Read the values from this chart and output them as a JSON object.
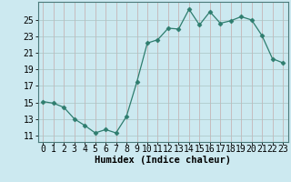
{
  "x": [
    0,
    1,
    2,
    3,
    4,
    5,
    6,
    7,
    8,
    9,
    10,
    11,
    12,
    13,
    14,
    15,
    16,
    17,
    18,
    19,
    20,
    21,
    22,
    23
  ],
  "y": [
    15.1,
    14.9,
    14.4,
    13.0,
    12.2,
    11.3,
    11.7,
    11.3,
    13.3,
    17.5,
    22.2,
    22.6,
    24.0,
    23.9,
    26.3,
    24.4,
    26.0,
    24.6,
    24.9,
    25.4,
    25.0,
    23.1,
    20.3,
    19.8
  ],
  "line_color": "#2e7d6e",
  "marker": "D",
  "marker_size": 2.5,
  "bg_color": "#cce9f0",
  "grid_x_color": "#c4aaaa",
  "grid_y_color": "#aac4c4",
  "xlabel": "Humidex (Indice chaleur)",
  "xlabel_fontsize": 7.5,
  "ylabel_ticks": [
    11,
    13,
    15,
    17,
    19,
    21,
    23,
    25
  ],
  "xlim": [
    -0.5,
    23.5
  ],
  "ylim": [
    10.2,
    27.2
  ],
  "tick_fontsize": 7,
  "xtick_labels": [
    "0",
    "1",
    "2",
    "3",
    "4",
    "5",
    "6",
    "7",
    "8",
    "9",
    "10",
    "11",
    "12",
    "13",
    "14",
    "15",
    "16",
    "17",
    "18",
    "19",
    "20",
    "21",
    "22",
    "23"
  ]
}
